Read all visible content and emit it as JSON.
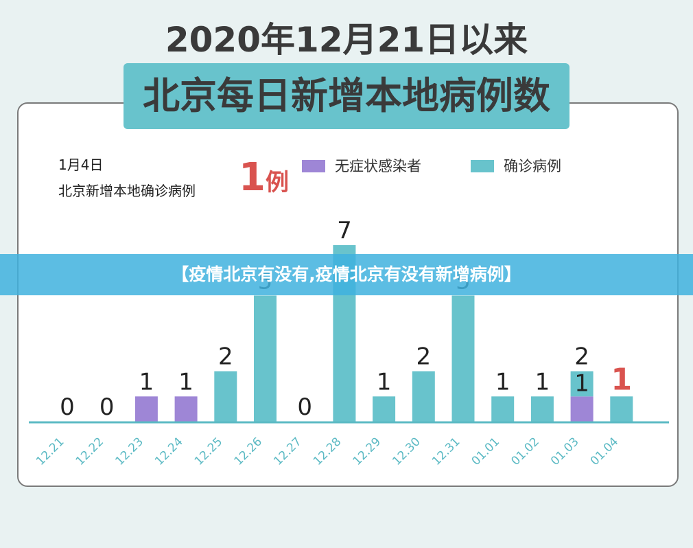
{
  "header": {
    "title_line1": "2020年12月21日以来",
    "title_line2": "北京每日新增本地病例数"
  },
  "info": {
    "date": "1月4日",
    "text": "北京新增本地确诊病例",
    "number": "1",
    "unit": "例"
  },
  "legend": [
    {
      "label": "无症状感染者",
      "color": "#9e86d6"
    },
    {
      "label": "确诊病例",
      "color": "#68c3cc"
    }
  ],
  "banner": {
    "text": "【疫情北京有没有,疫情北京有没有新增病例】"
  },
  "colors": {
    "highlight": "#d9534f",
    "axis": "#5cbac4",
    "tick_label": "#5cbac4"
  },
  "chart_data": {
    "type": "bar",
    "stacked": true,
    "title": "北京每日新增本地病例数",
    "categories": [
      "12.21",
      "12.22",
      "12.23",
      "12.24",
      "12.25",
      "12.26",
      "12.27",
      "12.28",
      "12.29",
      "12.30",
      "12.31",
      "01.01",
      "01.02",
      "01.03",
      "01.04"
    ],
    "series": [
      {
        "name": "无症状感染者",
        "values": [
          0,
          0,
          1,
          1,
          0,
          0,
          0,
          0,
          0,
          0,
          0,
          0,
          0,
          1,
          0
        ]
      },
      {
        "name": "确诊病例",
        "values": [
          0,
          0,
          0,
          0,
          2,
          5,
          0,
          7,
          1,
          2,
          5,
          1,
          1,
          1,
          1
        ]
      }
    ],
    "data_labels": [
      "0",
      "0",
      "1",
      "1",
      "2",
      "5",
      "0",
      "7",
      "1",
      "2",
      "5",
      "1",
      "1",
      "1",
      "1"
    ],
    "second_labels": {
      "13": "2"
    },
    "highlight_index": 14,
    "ylim": [
      0,
      7.5
    ],
    "grid": false,
    "legend_position": "top-right"
  }
}
